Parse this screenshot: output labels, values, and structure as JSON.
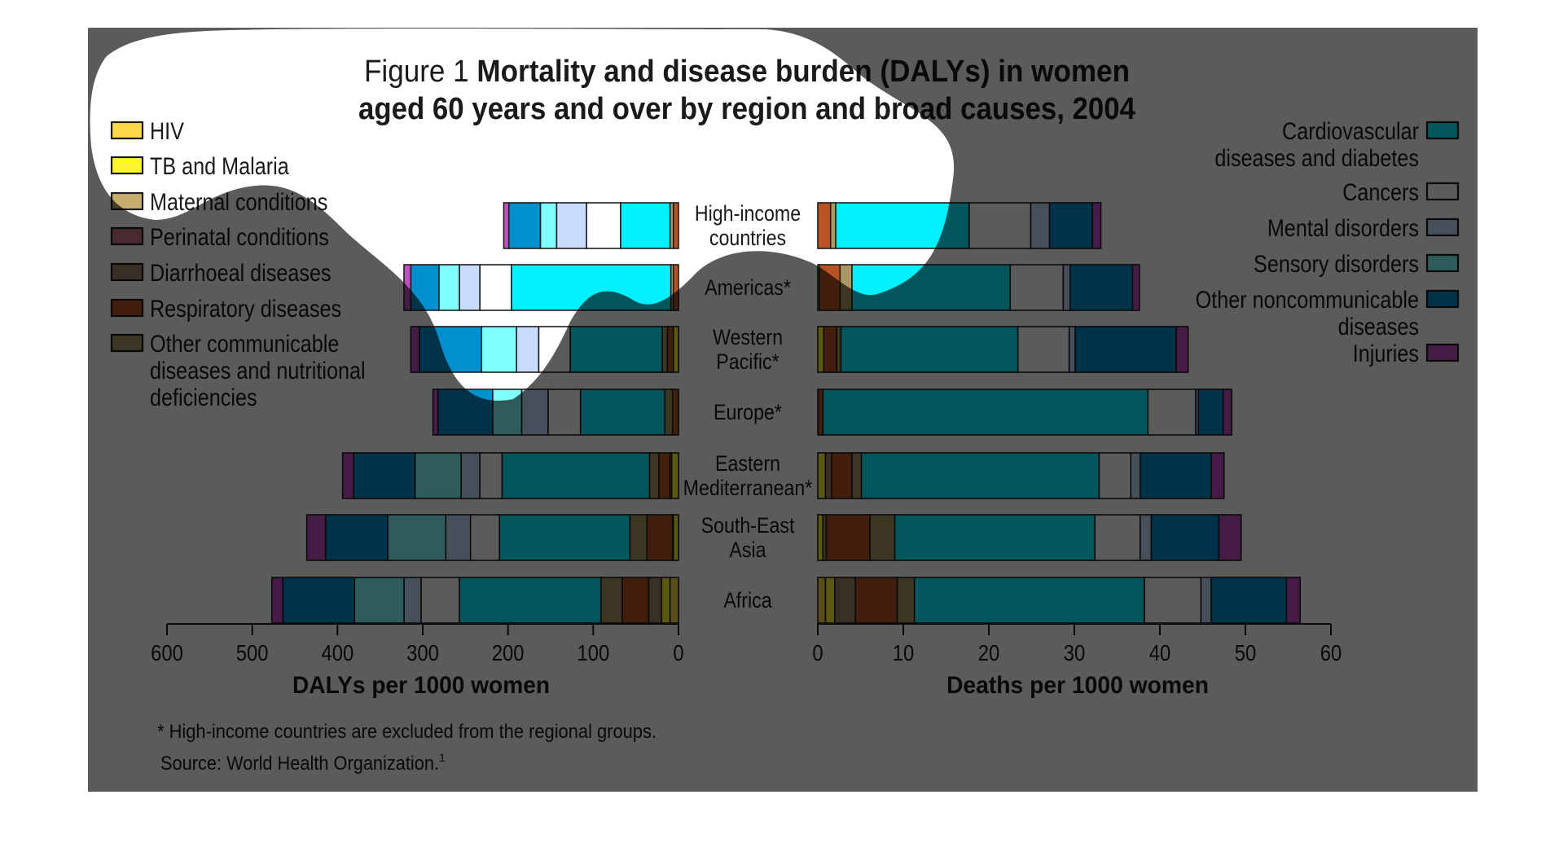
{
  "figure": {
    "label": "Figure 1",
    "title_line1": "Mortality and disease burden (DALYs) in women",
    "title_line2": "aged 60 years and over by region and broad causes, 2004"
  },
  "footnotes": {
    "note": "* High-income countries are excluded from the regional groups.",
    "source": "Source: World Health Organization.",
    "source_superscript": "1"
  },
  "legend_left": [
    {
      "key": "hiv",
      "lines": [
        "HIV"
      ]
    },
    {
      "key": "tb_malaria",
      "lines": [
        "TB and Malaria"
      ]
    },
    {
      "key": "maternal",
      "lines": [
        "Maternal conditions"
      ]
    },
    {
      "key": "perinatal",
      "lines": [
        "Perinatal conditions"
      ]
    },
    {
      "key": "diarrhoeal",
      "lines": [
        "Diarrhoeal diseases"
      ]
    },
    {
      "key": "respiratory",
      "lines": [
        "Respiratory diseases"
      ]
    },
    {
      "key": "other_communicable",
      "lines": [
        "Other communicable",
        "diseases and nutritional",
        "deficiencies"
      ]
    }
  ],
  "legend_right": [
    {
      "key": "cvd",
      "lines": [
        "Cardiovascular",
        "diseases and diabetes"
      ]
    },
    {
      "key": "cancers",
      "lines": [
        "Cancers"
      ]
    },
    {
      "key": "mental",
      "lines": [
        "Mental disorders"
      ]
    },
    {
      "key": "sensory",
      "lines": [
        "Sensory disorders"
      ]
    },
    {
      "key": "other_ncd",
      "lines": [
        "Other noncommunicable",
        "diseases"
      ]
    },
    {
      "key": "injuries",
      "lines": [
        "Injuries"
      ]
    }
  ],
  "colors": {
    "hiv": "#ffd84a",
    "tb_malaria": "#fff530",
    "maternal": "#c8ae6e",
    "perinatal": "#c87480",
    "diarrhoeal": "#a48466",
    "respiratory": "#b85424",
    "other_communicable": "#a89a62",
    "cvd": "#00f0ff",
    "cancers": "#ffffff",
    "mental": "#c8dcff",
    "sensory": "#80ffff",
    "other_ncd": "#0090d0",
    "injuries": "#c050c0",
    "panel_dark": "#5a5a5a",
    "text": "#1a1a1a"
  },
  "chart_data": [
    {
      "type": "bar",
      "orientation": "horizontal-stacked",
      "direction": "right-to-left",
      "title": "DALYs per 1000 women",
      "xlabel": "DALYs per 1000 women",
      "xlim": [
        0,
        600
      ],
      "xticks": [
        "600",
        "500",
        "400",
        "300",
        "200",
        "100",
        "0"
      ],
      "tick_values": [
        600,
        500,
        400,
        300,
        200,
        100,
        0
      ],
      "categories": [
        "High-income countries",
        "Americas*",
        "Western Pacific*",
        "Europe*",
        "Eastern Mediterranean*",
        "South-East Asia",
        "Africa"
      ],
      "series_order": [
        "hiv",
        "tb_malaria",
        "maternal",
        "perinatal",
        "diarrhoeal",
        "respiratory",
        "other_communicable",
        "cvd",
        "cancers",
        "mental",
        "sensory",
        "other_ncd",
        "injuries"
      ],
      "series": [
        {
          "name": "HIV",
          "key": "hiv",
          "values": [
            0,
            0,
            0,
            0,
            0,
            0,
            10
          ]
        },
        {
          "name": "TB and Malaria",
          "key": "tb_malaria",
          "values": [
            0,
            0,
            6,
            0,
            8,
            6,
            10
          ]
        },
        {
          "name": "Maternal conditions",
          "key": "maternal",
          "values": [
            0,
            0,
            0,
            0,
            0,
            0,
            0
          ]
        },
        {
          "name": "Perinatal conditions",
          "key": "perinatal",
          "values": [
            0,
            0,
            0,
            0,
            0,
            0,
            0
          ]
        },
        {
          "name": "Diarrhoeal diseases",
          "key": "diarrhoeal",
          "values": [
            0,
            0,
            0,
            0,
            2,
            1,
            15
          ]
        },
        {
          "name": "Respiratory diseases",
          "key": "respiratory",
          "values": [
            6,
            6,
            7,
            7,
            13,
            30,
            31
          ]
        },
        {
          "name": "Other communicable diseases and nutritional deficiencies",
          "key": "other_communicable",
          "values": [
            4,
            3,
            6,
            9,
            11,
            20,
            25
          ]
        },
        {
          "name": "Cardiovascular diseases and diabetes",
          "key": "cvd",
          "values": [
            58,
            187,
            108,
            99,
            173,
            153,
            166
          ]
        },
        {
          "name": "Cancers",
          "key": "cancers",
          "values": [
            40,
            37,
            37,
            38,
            26,
            34,
            45
          ]
        },
        {
          "name": "Mental disorders",
          "key": "mental",
          "values": [
            35,
            24,
            26,
            31,
            22,
            29,
            20
          ]
        },
        {
          "name": "Sensory disorders",
          "key": "sensory",
          "values": [
            19,
            24,
            41,
            34,
            54,
            68,
            58
          ]
        },
        {
          "name": "Other noncommunicable diseases",
          "key": "other_ncd",
          "values": [
            37,
            33,
            73,
            64,
            72,
            73,
            84
          ]
        },
        {
          "name": "Injuries",
          "key": "injuries",
          "values": [
            6,
            8,
            10,
            6,
            13,
            22,
            13
          ]
        }
      ]
    },
    {
      "type": "bar",
      "orientation": "horizontal-stacked",
      "direction": "left-to-right",
      "title": "Deaths per 1000 women",
      "xlabel": "Deaths per 1000 women",
      "xlim": [
        0,
        60
      ],
      "xticks": [
        "0",
        "10",
        "20",
        "30",
        "40",
        "50",
        "60"
      ],
      "tick_values": [
        0,
        10,
        20,
        30,
        40,
        50,
        60
      ],
      "categories": [
        "High-income countries",
        "Americas*",
        "Western Pacific*",
        "Europe*",
        "Eastern Mediterranean*",
        "South-East Asia",
        "Africa"
      ],
      "series_order": [
        "hiv",
        "tb_malaria",
        "maternal",
        "perinatal",
        "diarrhoeal",
        "respiratory",
        "other_communicable",
        "cvd",
        "cancers",
        "mental",
        "sensory",
        "other_ncd",
        "injuries"
      ],
      "series": [
        {
          "name": "HIV",
          "key": "hiv",
          "values": [
            0,
            0,
            0,
            0,
            0,
            0,
            0.9
          ]
        },
        {
          "name": "TB and Malaria",
          "key": "tb_malaria",
          "values": [
            0,
            0.2,
            0.7,
            0,
            0.9,
            0.6,
            1.1
          ]
        },
        {
          "name": "Maternal conditions",
          "key": "maternal",
          "values": [
            0,
            0,
            0,
            0,
            0,
            0,
            0
          ]
        },
        {
          "name": "Perinatal conditions",
          "key": "perinatal",
          "values": [
            0,
            0,
            0,
            0,
            0,
            0,
            0
          ]
        },
        {
          "name": "Diarrhoeal diseases",
          "key": "diarrhoeal",
          "values": [
            0,
            0,
            0,
            0,
            0.7,
            0.4,
            2.4
          ]
        },
        {
          "name": "Respiratory diseases",
          "key": "respiratory",
          "values": [
            1.5,
            2.4,
            1.5,
            0.6,
            2.4,
            5.1,
            4.9
          ]
        },
        {
          "name": "Other communicable diseases and nutritional deficiencies",
          "key": "other_communicable",
          "values": [
            0.6,
            1.4,
            0.5,
            0,
            1.1,
            2.9,
            2.0
          ]
        },
        {
          "name": "Cardiovascular diseases and diabetes",
          "key": "cvd",
          "values": [
            15.6,
            18.5,
            20.7,
            38.0,
            27.8,
            23.4,
            26.9
          ]
        },
        {
          "name": "Cancers",
          "key": "cancers",
          "values": [
            7.2,
            6.2,
            6.0,
            5.6,
            3.7,
            5.3,
            6.6
          ]
        },
        {
          "name": "Mental disorders",
          "key": "mental",
          "values": [
            2.2,
            0.8,
            0.7,
            0.3,
            1.1,
            1.3,
            1.2
          ]
        },
        {
          "name": "Sensory disorders",
          "key": "sensory",
          "values": [
            0,
            0,
            0,
            0,
            0,
            0,
            0
          ]
        },
        {
          "name": "Other noncommunicable diseases",
          "key": "other_ncd",
          "values": [
            5.0,
            7.3,
            11.8,
            2.9,
            8.3,
            7.9,
            8.8
          ]
        },
        {
          "name": "Injuries",
          "key": "injuries",
          "values": [
            1.0,
            0.8,
            1.4,
            1.0,
            1.5,
            2.6,
            1.6
          ]
        }
      ]
    }
  ],
  "region_labels": [
    [
      "High-income",
      "countries"
    ],
    [
      "Americas*"
    ],
    [
      "Western",
      "Pacific*"
    ],
    [
      "Europe*"
    ],
    [
      "Eastern",
      "Mediterranean*"
    ],
    [
      "South-East",
      "Asia"
    ],
    [
      "Africa"
    ]
  ]
}
